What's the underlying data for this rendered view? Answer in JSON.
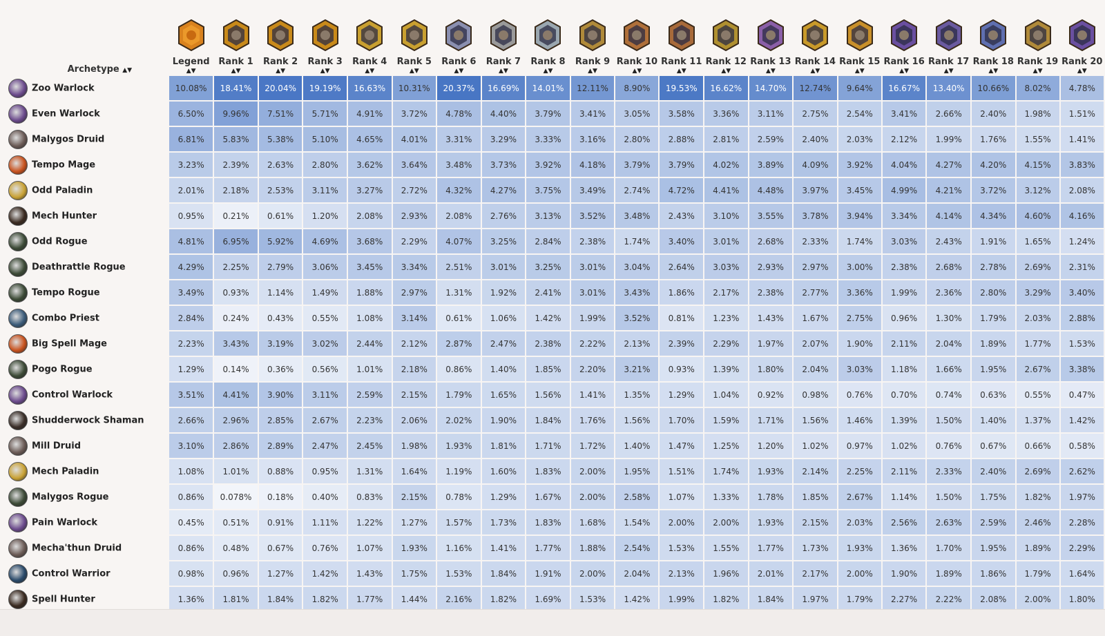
{
  "header": {
    "archetype_label": "Archetype",
    "sort_glyph": "▲▼",
    "ranks": [
      "Legend",
      "Rank 1",
      "Rank 2",
      "Rank 3",
      "Rank 4",
      "Rank 5",
      "Rank 6",
      "Rank 7",
      "Rank 8",
      "Rank 9",
      "Rank 10",
      "Rank 11",
      "Rank 12",
      "Rank 13",
      "Rank 14",
      "Rank 15",
      "Rank 16",
      "Rank 17",
      "Rank 18",
      "Rank 19",
      "Rank 20"
    ]
  },
  "medal_colors": [
    "#d9821e",
    "#c98a1a",
    "#c98a1a",
    "#c98a1a",
    "#c9a030",
    "#c9a030",
    "#8a8fb0",
    "#9a9a9a",
    "#9aa7b0",
    "#b08a3a",
    "#b0703a",
    "#a86a3a",
    "#b09030",
    "#8a5fa8",
    "#c99a2a",
    "#c9902a",
    "#6a4fa0",
    "#6a5aa0",
    "#5f6fb0",
    "#b08a3a",
    "#6a4fa0"
  ],
  "rows": [
    {
      "name": "Zoo Warlock",
      "class": "warlock",
      "values": [
        "10.08%",
        "18.41%",
        "20.04%",
        "19.19%",
        "16.63%",
        "10.31%",
        "20.37%",
        "16.69%",
        "14.01%",
        "12.11%",
        "8.90%",
        "19.53%",
        "16.62%",
        "14.70%",
        "12.74%",
        "9.64%",
        "16.67%",
        "13.40%",
        "10.66%",
        "8.02%",
        "4.78%"
      ]
    },
    {
      "name": "Even Warlock",
      "class": "warlock",
      "values": [
        "6.50%",
        "9.96%",
        "7.51%",
        "5.71%",
        "4.91%",
        "3.72%",
        "4.78%",
        "4.40%",
        "3.79%",
        "3.41%",
        "3.05%",
        "3.58%",
        "3.36%",
        "3.11%",
        "2.75%",
        "2.54%",
        "3.41%",
        "2.66%",
        "2.40%",
        "1.98%",
        "1.51%"
      ]
    },
    {
      "name": "Malygos Druid",
      "class": "druid",
      "values": [
        "6.81%",
        "5.83%",
        "5.38%",
        "5.10%",
        "4.65%",
        "4.01%",
        "3.31%",
        "3.29%",
        "3.33%",
        "3.16%",
        "2.80%",
        "2.88%",
        "2.81%",
        "2.59%",
        "2.40%",
        "2.03%",
        "2.12%",
        "1.99%",
        "1.76%",
        "1.55%",
        "1.41%"
      ]
    },
    {
      "name": "Tempo Mage",
      "class": "mage",
      "values": [
        "3.23%",
        "2.39%",
        "2.63%",
        "2.80%",
        "3.62%",
        "3.64%",
        "3.48%",
        "3.73%",
        "3.92%",
        "4.18%",
        "3.79%",
        "3.79%",
        "4.02%",
        "3.89%",
        "4.09%",
        "3.92%",
        "4.04%",
        "4.27%",
        "4.20%",
        "4.15%",
        "3.83%"
      ]
    },
    {
      "name": "Odd Paladin",
      "class": "paladin",
      "values": [
        "2.01%",
        "2.18%",
        "2.53%",
        "3.11%",
        "3.27%",
        "2.72%",
        "4.32%",
        "4.27%",
        "3.75%",
        "3.49%",
        "2.74%",
        "4.72%",
        "4.41%",
        "4.48%",
        "3.97%",
        "3.45%",
        "4.99%",
        "4.21%",
        "3.72%",
        "3.12%",
        "2.08%"
      ]
    },
    {
      "name": "Mech Hunter",
      "class": "hunter",
      "values": [
        "0.95%",
        "0.21%",
        "0.61%",
        "1.20%",
        "2.08%",
        "2.93%",
        "2.08%",
        "2.76%",
        "3.13%",
        "3.52%",
        "3.48%",
        "2.43%",
        "3.10%",
        "3.55%",
        "3.78%",
        "3.94%",
        "3.34%",
        "4.14%",
        "4.34%",
        "4.60%",
        "4.16%"
      ]
    },
    {
      "name": "Odd Rogue",
      "class": "rogue",
      "values": [
        "4.81%",
        "6.95%",
        "5.92%",
        "4.69%",
        "3.68%",
        "2.29%",
        "4.07%",
        "3.25%",
        "2.84%",
        "2.38%",
        "1.74%",
        "3.40%",
        "3.01%",
        "2.68%",
        "2.33%",
        "1.74%",
        "3.03%",
        "2.43%",
        "1.91%",
        "1.65%",
        "1.24%"
      ]
    },
    {
      "name": "Deathrattle Rogue",
      "class": "rogue",
      "values": [
        "4.29%",
        "2.25%",
        "2.79%",
        "3.06%",
        "3.45%",
        "3.34%",
        "2.51%",
        "3.01%",
        "3.25%",
        "3.01%",
        "3.04%",
        "2.64%",
        "3.03%",
        "2.93%",
        "2.97%",
        "3.00%",
        "2.38%",
        "2.68%",
        "2.78%",
        "2.69%",
        "2.31%"
      ]
    },
    {
      "name": "Tempo Rogue",
      "class": "rogue",
      "values": [
        "3.49%",
        "0.93%",
        "1.14%",
        "1.49%",
        "1.88%",
        "2.97%",
        "1.31%",
        "1.92%",
        "2.41%",
        "3.01%",
        "3.43%",
        "1.86%",
        "2.17%",
        "2.38%",
        "2.77%",
        "3.36%",
        "1.99%",
        "2.36%",
        "2.80%",
        "3.29%",
        "3.40%"
      ]
    },
    {
      "name": "Combo Priest",
      "class": "priest",
      "values": [
        "2.84%",
        "0.24%",
        "0.43%",
        "0.55%",
        "1.08%",
        "3.14%",
        "0.61%",
        "1.06%",
        "1.42%",
        "1.99%",
        "3.52%",
        "0.81%",
        "1.23%",
        "1.43%",
        "1.67%",
        "2.75%",
        "0.96%",
        "1.30%",
        "1.79%",
        "2.03%",
        "2.88%"
      ]
    },
    {
      "name": "Big Spell Mage",
      "class": "mage",
      "values": [
        "2.23%",
        "3.43%",
        "3.19%",
        "3.02%",
        "2.44%",
        "2.12%",
        "2.87%",
        "2.47%",
        "2.38%",
        "2.22%",
        "2.13%",
        "2.39%",
        "2.29%",
        "1.97%",
        "2.07%",
        "1.90%",
        "2.11%",
        "2.04%",
        "1.89%",
        "1.77%",
        "1.53%"
      ]
    },
    {
      "name": "Pogo Rogue",
      "class": "rogue",
      "values": [
        "1.29%",
        "0.14%",
        "0.36%",
        "0.56%",
        "1.01%",
        "2.18%",
        "0.86%",
        "1.40%",
        "1.85%",
        "2.20%",
        "3.21%",
        "0.93%",
        "1.39%",
        "1.80%",
        "2.04%",
        "3.03%",
        "1.18%",
        "1.66%",
        "1.95%",
        "2.67%",
        "3.38%"
      ]
    },
    {
      "name": "Control Warlock",
      "class": "warlock",
      "values": [
        "3.51%",
        "4.41%",
        "3.90%",
        "3.11%",
        "2.59%",
        "2.15%",
        "1.79%",
        "1.65%",
        "1.56%",
        "1.41%",
        "1.35%",
        "1.29%",
        "1.04%",
        "0.92%",
        "0.98%",
        "0.76%",
        "0.70%",
        "0.74%",
        "0.63%",
        "0.55%",
        "0.47%"
      ]
    },
    {
      "name": "Shudderwock Shaman",
      "class": "shaman",
      "values": [
        "2.66%",
        "2.96%",
        "2.85%",
        "2.67%",
        "2.23%",
        "2.06%",
        "2.02%",
        "1.90%",
        "1.84%",
        "1.76%",
        "1.56%",
        "1.70%",
        "1.59%",
        "1.71%",
        "1.56%",
        "1.46%",
        "1.39%",
        "1.50%",
        "1.40%",
        "1.37%",
        "1.42%"
      ]
    },
    {
      "name": "Mill Druid",
      "class": "druid",
      "values": [
        "3.10%",
        "2.86%",
        "2.89%",
        "2.47%",
        "2.45%",
        "1.98%",
        "1.93%",
        "1.81%",
        "1.71%",
        "1.72%",
        "1.40%",
        "1.47%",
        "1.25%",
        "1.20%",
        "1.02%",
        "0.97%",
        "1.02%",
        "0.76%",
        "0.67%",
        "0.66%",
        "0.58%"
      ]
    },
    {
      "name": "Mech Paladin",
      "class": "paladin",
      "values": [
        "1.08%",
        "1.01%",
        "0.88%",
        "0.95%",
        "1.31%",
        "1.64%",
        "1.19%",
        "1.60%",
        "1.83%",
        "2.00%",
        "1.95%",
        "1.51%",
        "1.74%",
        "1.93%",
        "2.14%",
        "2.25%",
        "2.11%",
        "2.33%",
        "2.40%",
        "2.69%",
        "2.62%"
      ]
    },
    {
      "name": "Malygos Rogue",
      "class": "rogue",
      "values": [
        "0.86%",
        "0.078%",
        "0.18%",
        "0.40%",
        "0.83%",
        "2.15%",
        "0.78%",
        "1.29%",
        "1.67%",
        "2.00%",
        "2.58%",
        "1.07%",
        "1.33%",
        "1.78%",
        "1.85%",
        "2.67%",
        "1.14%",
        "1.50%",
        "1.75%",
        "1.82%",
        "1.97%"
      ]
    },
    {
      "name": "Pain Warlock",
      "class": "warlock",
      "values": [
        "0.45%",
        "0.51%",
        "0.91%",
        "1.11%",
        "1.22%",
        "1.27%",
        "1.57%",
        "1.73%",
        "1.83%",
        "1.68%",
        "1.54%",
        "2.00%",
        "2.00%",
        "1.93%",
        "2.15%",
        "2.03%",
        "2.56%",
        "2.63%",
        "2.59%",
        "2.46%",
        "2.28%"
      ]
    },
    {
      "name": "Mecha'thun Druid",
      "class": "druid",
      "values": [
        "0.86%",
        "0.48%",
        "0.67%",
        "0.76%",
        "1.07%",
        "1.93%",
        "1.16%",
        "1.41%",
        "1.77%",
        "1.88%",
        "2.54%",
        "1.53%",
        "1.55%",
        "1.77%",
        "1.73%",
        "1.93%",
        "1.36%",
        "1.70%",
        "1.95%",
        "1.89%",
        "2.29%"
      ]
    },
    {
      "name": "Control Warrior",
      "class": "warrior",
      "values": [
        "0.98%",
        "0.96%",
        "1.27%",
        "1.42%",
        "1.43%",
        "1.75%",
        "1.53%",
        "1.84%",
        "1.91%",
        "2.00%",
        "2.04%",
        "2.13%",
        "1.96%",
        "2.01%",
        "2.17%",
        "2.00%",
        "1.90%",
        "1.89%",
        "1.86%",
        "1.79%",
        "1.64%"
      ]
    },
    {
      "name": "Spell Hunter",
      "class": "hunter",
      "values": [
        "1.36%",
        "1.81%",
        "1.84%",
        "1.82%",
        "1.77%",
        "1.44%",
        "2.16%",
        "1.82%",
        "1.69%",
        "1.53%",
        "1.42%",
        "1.99%",
        "1.82%",
        "1.84%",
        "1.97%",
        "1.79%",
        "2.27%",
        "2.22%",
        "2.08%",
        "2.00%",
        "1.80%"
      ]
    }
  ],
  "class_colors": {
    "warlock": "#6b4a8c",
    "druid": "#6a5a55",
    "mage": "#c8521e",
    "paladin": "#c9a235",
    "hunter": "#3a2a20",
    "rogue": "#3c4a36",
    "priest": "#3a5a78",
    "shaman": "#3a2e28",
    "warrior": "#2a4a6a"
  }
}
